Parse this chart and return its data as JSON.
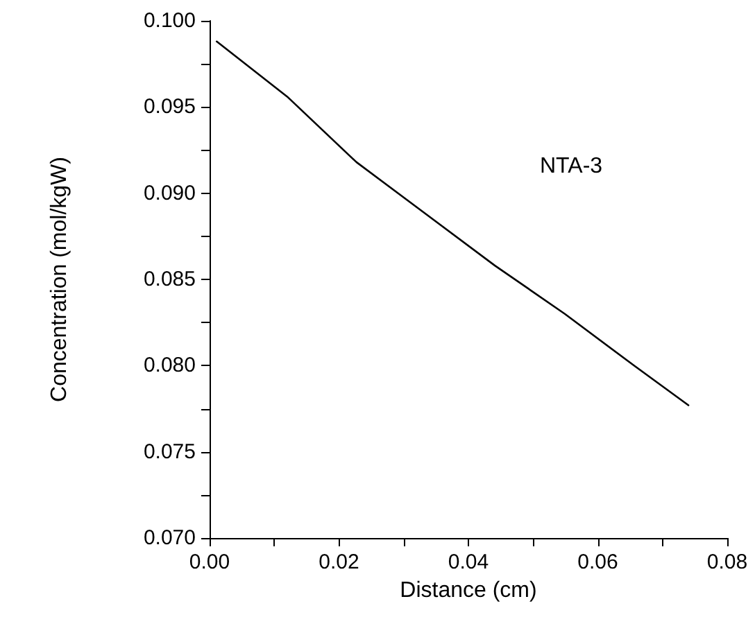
{
  "chart_data": {
    "type": "line",
    "xlabel": "Distance (cm)",
    "ylabel": "Concentration (mol/kgW)",
    "x": [
      0.0011,
      0.012,
      0.0227,
      0.0334,
      0.0441,
      0.0549,
      0.0656,
      0.074
    ],
    "series": [
      {
        "color": "#000000",
        "values": [
          0.0988,
          0.0956,
          0.0918,
          0.0888,
          0.0858,
          0.083,
          0.08,
          0.0777
        ]
      }
    ],
    "xlim": [
      0,
      0.08
    ],
    "xticks": [
      {
        "value": 0,
        "label": "0.00"
      },
      {
        "value": 0.01,
        "label": null
      },
      {
        "value": 0.02,
        "label": "0.02"
      },
      {
        "value": 0.03,
        "label": null
      },
      {
        "value": 0.04,
        "label": "0.04"
      },
      {
        "value": 0.05,
        "label": null
      },
      {
        "value": 0.06,
        "label": "0.06"
      },
      {
        "value": 0.07,
        "label": null
      },
      {
        "value": 0.08,
        "label": "0.08"
      }
    ],
    "ylim": [
      0.07,
      0.1
    ],
    "yticks": [
      {
        "value": 0.07,
        "label": "0.070"
      },
      {
        "value": 0.0725,
        "label": null
      },
      {
        "value": 0.075,
        "label": "0.075"
      },
      {
        "value": 0.0775,
        "label": null
      },
      {
        "value": 0.08,
        "label": "0.080"
      },
      {
        "value": 0.0825,
        "label": null
      },
      {
        "value": 0.085,
        "label": "0.085"
      },
      {
        "value": 0.0875,
        "label": null
      },
      {
        "value": 0.09,
        "label": "0.090"
      },
      {
        "value": 0.0925,
        "label": null
      },
      {
        "value": 0.095,
        "label": "0.095"
      },
      {
        "value": 0.0975,
        "label": null
      },
      {
        "value": 0.1,
        "label": "0.100"
      }
    ],
    "annotations": [
      "NTA-3"
    ],
    "grid": false,
    "marker": "none",
    "line_style": "solid"
  }
}
